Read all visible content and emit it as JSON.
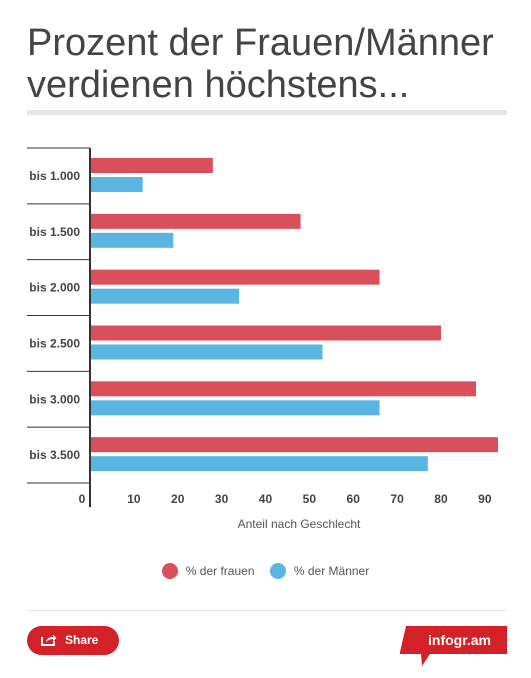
{
  "title": "Prozent der Frauen/Männer verdienen höchstens...",
  "legend": {
    "women_label": "% der frauen",
    "men_label": "% der Männer"
  },
  "footer": {
    "share_label": "Share",
    "brand_label": "infogr.am"
  },
  "colors": {
    "women": "#d9505a",
    "men": "#5bb5e3",
    "accent": "#d42027",
    "axis": "#333333"
  },
  "chart_data": {
    "type": "bar",
    "orientation": "horizontal",
    "categories": [
      "bis 1.000",
      "bis 1.500",
      "bis 2.000",
      "bis 2.500",
      "bis 3.000",
      "bis 3.500"
    ],
    "series": [
      {
        "name": "% der frauen",
        "values": [
          28,
          48,
          66,
          80,
          88,
          93
        ]
      },
      {
        "name": "% der Männer",
        "values": [
          12,
          19,
          34,
          53,
          66,
          77
        ]
      }
    ],
    "xlim": [
      0,
      93
    ],
    "xticks": [
      0,
      10,
      20,
      30,
      40,
      50,
      60,
      70,
      80,
      90
    ],
    "xlabel": "Anteil nach Geschlecht",
    "ylabel": "",
    "legend_position": "bottom",
    "grid": false
  }
}
